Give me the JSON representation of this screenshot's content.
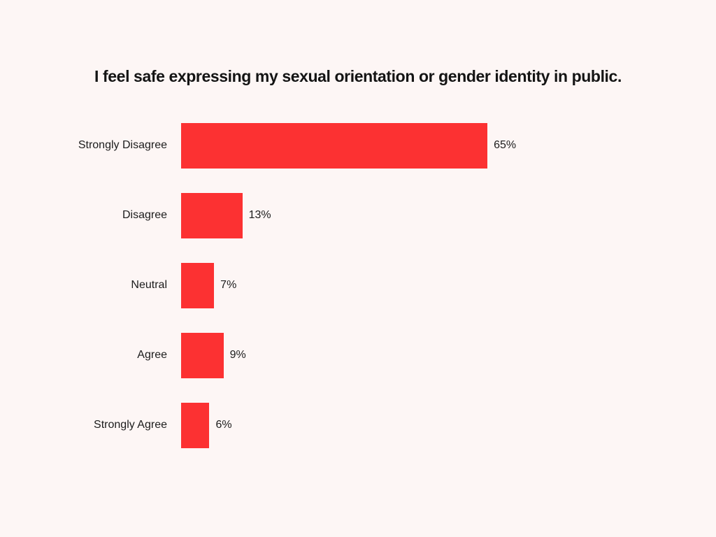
{
  "page": {
    "background_color": "#FDF6F5"
  },
  "chart_data": {
    "type": "bar",
    "orientation": "horizontal",
    "title": "I feel safe expressing my sexual orientation or gender identity in public.",
    "categories": [
      "Strongly Disagree",
      "Disagree",
      "Neutral",
      "Agree",
      "Strongly Agree"
    ],
    "values": [
      65,
      13,
      7,
      9,
      6
    ],
    "value_labels": [
      "65%",
      "13%",
      "7%",
      "9%",
      "6%"
    ],
    "xlim": [
      0,
      65
    ],
    "grid": false,
    "legend": false,
    "bar_color": "#FC3132",
    "text_color": "#1c1c1c",
    "title_color": "#141414"
  }
}
